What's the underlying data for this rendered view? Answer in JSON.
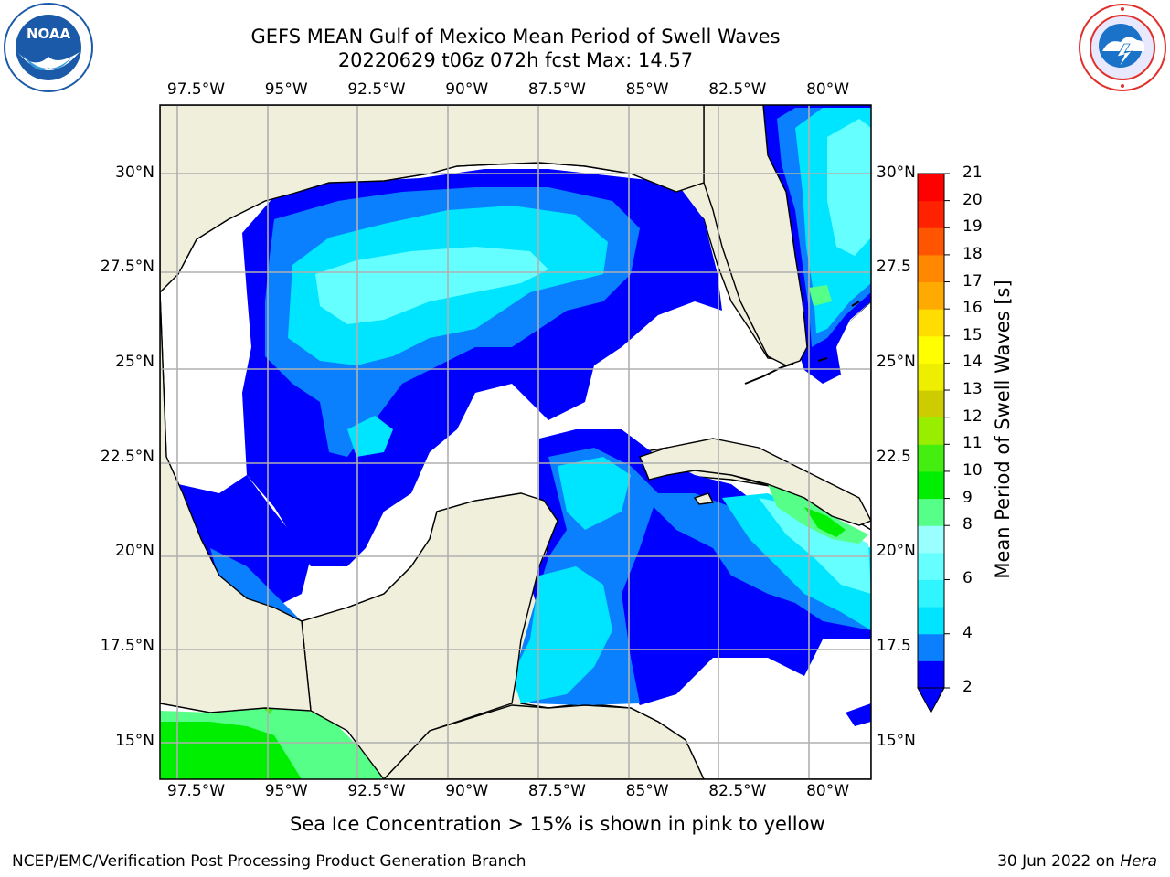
{
  "title_line1": "GEFS MEAN Gulf of Mexico Mean Period of Swell Waves",
  "title_line2": "20220629 t06z 072h fcst   Max: 14.57",
  "map": {
    "lon_min": -98.5,
    "lon_max": -78.8,
    "lat_min": 14.0,
    "lat_max": 31.8,
    "lon_ticks": [
      -97.5,
      -95,
      -92.5,
      -90,
      -87.5,
      -85,
      -82.5,
      -80
    ],
    "lon_labels": [
      "97.5°W",
      "95°W",
      "92.5°W",
      "90°W",
      "87.5°W",
      "85°W",
      "82.5°W",
      "80°W"
    ],
    "lat_ticks": [
      30,
      27.5,
      25,
      22.5,
      20,
      17.5,
      15
    ],
    "lat_labels_left": [
      "30°N",
      "27.5°N",
      "25°N",
      "22.5°N",
      "20°N",
      "17.5°N",
      "15°N"
    ],
    "lat_labels_right": [
      "30°N",
      "27.5",
      "25°N",
      "22.5",
      "20°N",
      "17.5",
      "15°N"
    ],
    "land_color": "#efefdc",
    "grid_color": "#b0b0b0"
  },
  "colorbar": {
    "label": "Mean Period of Swell Waves [s]",
    "levels": [
      2,
      3,
      4,
      5,
      6,
      7,
      8,
      9,
      10,
      11,
      12,
      13,
      14,
      15,
      16,
      17,
      18,
      19,
      20,
      21
    ],
    "level_labels": [
      "2",
      "4",
      "6",
      "8",
      "9",
      "10",
      "11",
      "12",
      "13",
      "14",
      "15",
      "16",
      "17",
      "18",
      "19",
      "20",
      "21"
    ],
    "colors": [
      "#0000ff",
      "#0a80ff",
      "#00e5ff",
      "#30f5ff",
      "#66ffff",
      "#99ffff",
      "#55ff88",
      "#00ee00",
      "#44ee11",
      "#99ee00",
      "#cccc00",
      "#eeee00",
      "#ffff00",
      "#ffdd00",
      "#ffaa00",
      "#ff8800",
      "#ff5500",
      "#ff2200",
      "#ff0000"
    ],
    "extend_color": "#0000ff"
  },
  "footnote": "Sea Ice Concentration > 15% is shown in pink to yellow",
  "credit": "NCEP/EMC/Verification Post Processing Product Generation Branch",
  "date_text": "30 Jun 2022 on ",
  "date_machine": "Hera",
  "logos": {
    "left": {
      "name": "NOAA",
      "ring_text": "NATIONAL OCEANIC AND ATMOSPHERIC ADMINISTRATION"
    },
    "right": {
      "name": "NWS",
      "ring_text": "NATIONAL WEATHER SERVICE"
    }
  },
  "colors": {
    "noaa_blue": "#1a5aa8",
    "nws_red": "#e0302a",
    "nws_blue": "#1a73c8"
  }
}
